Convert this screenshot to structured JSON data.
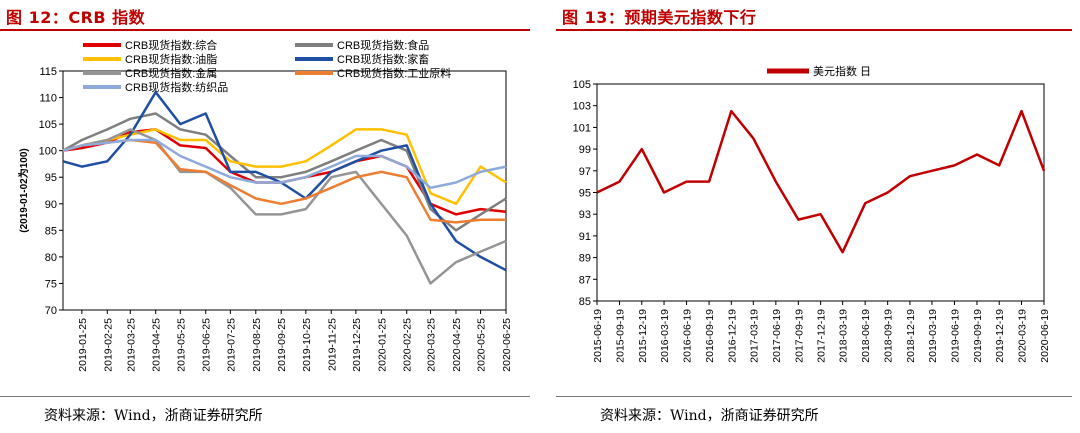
{
  "left": {
    "title": "图 12：CRB 指数",
    "source": "资料来源：Wind，浙商证券研究所",
    "chart_data": {
      "type": "line",
      "ylabel": "(2019-01-02为100)",
      "ylim": [
        70,
        115
      ],
      "yticks": [
        70,
        75,
        80,
        85,
        90,
        95,
        100,
        105,
        110,
        115
      ],
      "xticks": [
        "2019-01-25",
        "2019-02-25",
        "2019-03-25",
        "2019-04-25",
        "2019-05-25",
        "2019-06-25",
        "2019-07-25",
        "2019-08-25",
        "2019-09-25",
        "2019-10-25",
        "2019-11-25",
        "2019-12-25",
        "2020-01-25",
        "2020-02-25",
        "2020-03-25",
        "2020-04-25",
        "2020-05-25",
        "2020-06-25"
      ],
      "legend_position": "top",
      "x": [
        "2019-01-02",
        "2019-01-25",
        "2019-02-25",
        "2019-03-25",
        "2019-04-25",
        "2019-05-25",
        "2019-06-25",
        "2019-07-25",
        "2019-08-25",
        "2019-09-25",
        "2019-10-25",
        "2019-11-25",
        "2019-12-25",
        "2020-01-25",
        "2020-02-25",
        "2020-03-25",
        "2020-04-25",
        "2020-05-25",
        "2020-06-25"
      ],
      "series": [
        {
          "name": "CRB现货指数:综合",
          "color": "#e00000",
          "values": [
            100,
            100.5,
            101.5,
            103.5,
            104,
            101,
            100.5,
            96,
            94,
            94,
            95,
            96,
            98,
            99,
            97,
            90,
            88,
            89,
            88.5
          ]
        },
        {
          "name": "CRB现货指数:食品",
          "color": "#7f7f7f",
          "values": [
            100,
            102,
            104,
            106,
            107,
            104,
            103,
            99,
            95,
            95,
            96,
            98,
            100,
            102,
            100,
            89,
            85,
            88,
            91
          ]
        },
        {
          "name": "CRB现货指数:油脂",
          "color": "#ffc000",
          "values": [
            100,
            101,
            102,
            103,
            104,
            102,
            102,
            98,
            97,
            97,
            98,
            101,
            104,
            104,
            103,
            92,
            90,
            97,
            94
          ]
        },
        {
          "name": "CRB现货指数:家畜",
          "color": "#1f4fa5",
          "values": [
            98,
            97,
            98,
            103,
            111,
            105,
            107,
            96,
            96,
            94,
            91,
            96,
            98,
            100,
            101,
            90,
            83,
            80,
            77.5
          ]
        },
        {
          "name": "CRB现货指数:金属",
          "color": "#959595",
          "values": [
            100,
            101,
            102,
            104,
            102,
            96,
            96,
            93,
            88,
            88,
            89,
            95,
            96,
            90,
            84,
            75,
            79,
            81,
            83
          ]
        },
        {
          "name": "CRB现货指数:工业原料",
          "color": "#ed7d31",
          "values": [
            100,
            101,
            101.5,
            102,
            101.5,
            96.5,
            96,
            93.5,
            91,
            90,
            91,
            93,
            95,
            96,
            95,
            87,
            86.5,
            87,
            87
          ]
        },
        {
          "name": "CRB现货指数:纺织品",
          "color": "#8eaadb",
          "values": [
            100,
            101,
            101.5,
            102,
            102,
            99,
            97,
            95,
            94,
            94,
            95,
            97,
            99,
            99,
            97,
            93,
            94,
            96,
            97
          ]
        }
      ]
    }
  },
  "right": {
    "title": "图 13：预期美元指数下行",
    "source": "资料来源：Wind，浙商证券研究所",
    "chart_data": {
      "type": "line",
      "ylim": [
        85,
        105
      ],
      "yticks": [
        85,
        87,
        89,
        91,
        93,
        95,
        97,
        99,
        101,
        103,
        105
      ],
      "xticks": [
        "2015-06-19",
        "2015-09-19",
        "2015-12-19",
        "2016-03-19",
        "2016-06-19",
        "2016-09-19",
        "2016-12-19",
        "2017-03-19",
        "2017-06-19",
        "2017-09-19",
        "2017-12-19",
        "2018-03-19",
        "2018-06-19",
        "2018-09-19",
        "2018-12-19",
        "2019-03-19",
        "2019-06-19",
        "2019-09-19",
        "2019-12-19",
        "2020-03-19",
        "2020-06-19"
      ],
      "legend_position": "top-center",
      "x": [
        "2015-06-19",
        "2015-09-19",
        "2015-12-19",
        "2016-03-19",
        "2016-06-19",
        "2016-09-19",
        "2016-12-19",
        "2017-03-19",
        "2017-06-19",
        "2017-09-19",
        "2017-12-19",
        "2018-03-19",
        "2018-06-19",
        "2018-09-19",
        "2018-12-19",
        "2019-03-19",
        "2019-06-19",
        "2019-09-19",
        "2019-12-19",
        "2020-03-19",
        "2020-06-19"
      ],
      "series": [
        {
          "name": "美元指数 日",
          "color": "#c00000",
          "values": [
            95,
            96,
            99,
            95,
            96,
            96,
            102.5,
            100,
            96,
            92.5,
            93,
            89.5,
            94,
            95,
            96.5,
            97,
            97.5,
            98.5,
            97.5,
            102.5,
            97
          ]
        }
      ]
    }
  }
}
